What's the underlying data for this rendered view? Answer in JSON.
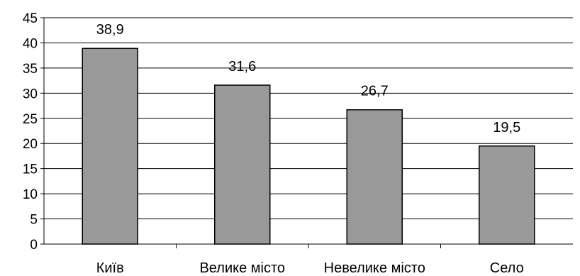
{
  "chart_data": {
    "type": "bar",
    "categories": [
      "Київ",
      "Велике місто",
      "Невелике місто",
      "Село"
    ],
    "values": [
      38.9,
      31.6,
      26.7,
      19.5
    ],
    "data_labels": [
      "38,9",
      "31,6",
      "26,7",
      "19,5"
    ],
    "ylim": [
      0,
      45
    ],
    "yticks": [
      0,
      5,
      10,
      15,
      20,
      25,
      30,
      35,
      40,
      45
    ],
    "grid": true,
    "legend": "none",
    "title": "",
    "xlabel": "",
    "ylabel": "",
    "colors": {
      "bar_fill": "#999999",
      "bar_stroke": "#000000",
      "grid": "#000000",
      "axis": "#000000"
    }
  }
}
